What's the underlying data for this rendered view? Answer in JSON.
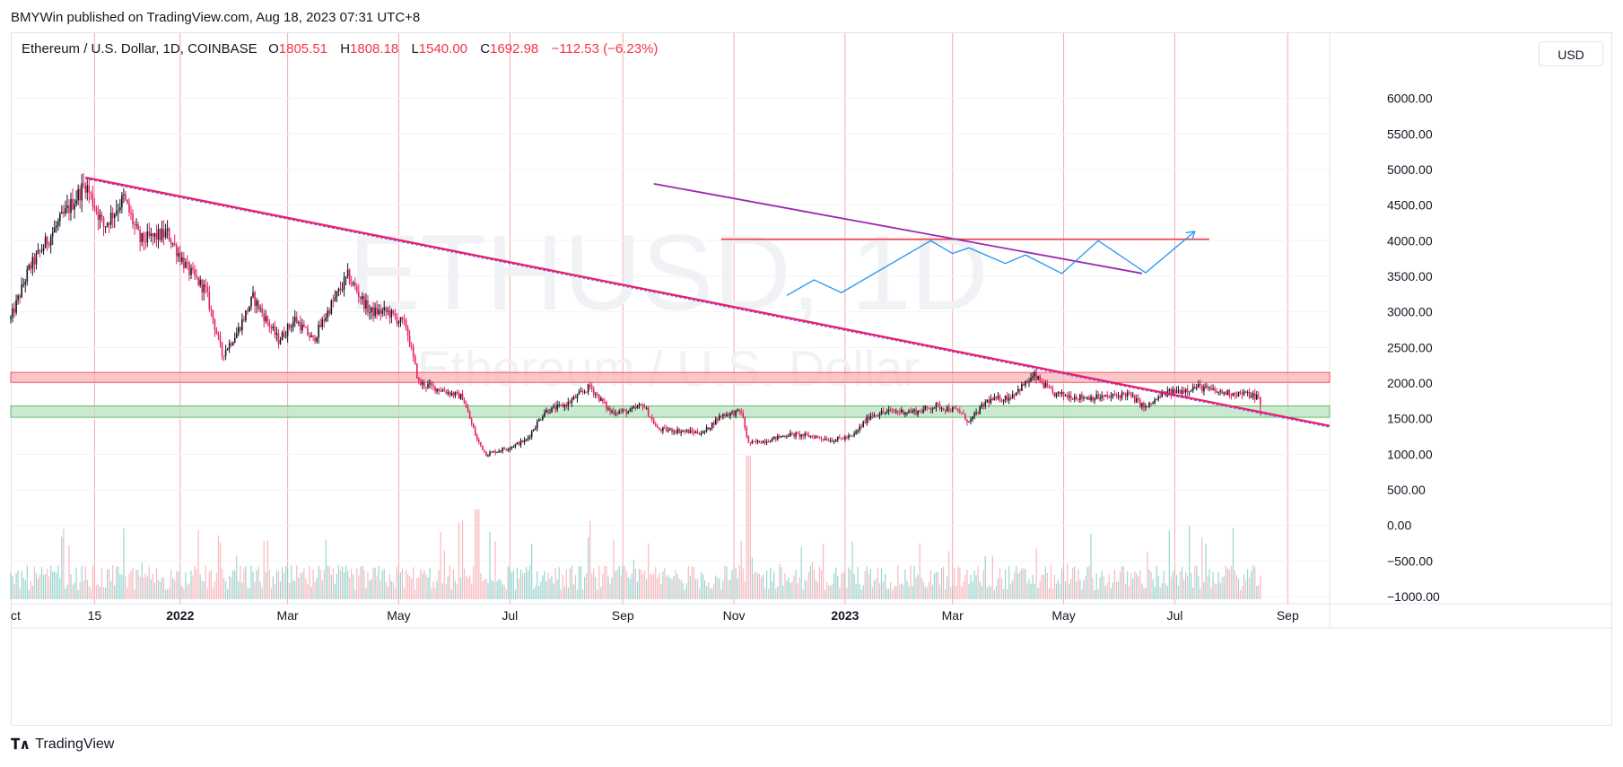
{
  "header": {
    "published": "BMYWin published on TradingView.com, Aug 18, 2023 07:31 UTC+8"
  },
  "legend": {
    "symbol": "Ethereum / U.S. Dollar, 1D, COINBASE",
    "o_label": "O",
    "o_value": "1805.51",
    "h_label": "H",
    "h_value": "1808.18",
    "l_label": "L",
    "l_value": "1540.00",
    "c_label": "C",
    "c_value": "1692.98",
    "change": "−112.53 (−6.23%)"
  },
  "currency_button": "USD",
  "footer": {
    "brand": "TradingView",
    "logo": "tradingview-logo-icon"
  },
  "colors": {
    "up": "#131722",
    "down": "#e91e63",
    "resistance_zone": "#f7b3b8",
    "support_zone": "#b7e3c0",
    "trendline": "#e91e63",
    "purple": "#9c27b0",
    "blue": "#2962ff",
    "red_level": "#f23645"
  },
  "chart_data": {
    "type": "candlestick",
    "watermark": {
      "symbol": "ETHUSD, 1D",
      "name": "Ethereum / U.S. Dollar"
    },
    "y_axis": {
      "ticks": [
        6000,
        5500,
        5000,
        4500,
        4000,
        3500,
        3000,
        2500,
        2000,
        1500,
        1000,
        500,
        0,
        -500,
        -1000
      ],
      "tick_labels": [
        "6000.00",
        "5500.00",
        "5000.00",
        "4500.00",
        "4000.00",
        "3500.00",
        "3000.00",
        "2500.00",
        "2000.00",
        "1500.00",
        "1000.00",
        "500.00",
        "0.00",
        "−500.00",
        "−1000.00"
      ],
      "range": [
        -1100,
        6600
      ]
    },
    "x_axis": {
      "ticks": [
        {
          "label": "ct",
          "date": "2021-10-01",
          "bold": false
        },
        {
          "label": "15",
          "date": "2021-11-15",
          "bold": false
        },
        {
          "label": "2022",
          "date": "2022-01-01",
          "bold": true
        },
        {
          "label": "Mar",
          "date": "2022-03-01",
          "bold": false
        },
        {
          "label": "May",
          "date": "2022-05-01",
          "bold": false
        },
        {
          "label": "Jul",
          "date": "2022-07-01",
          "bold": false
        },
        {
          "label": "Sep",
          "date": "2022-09-01",
          "bold": false
        },
        {
          "label": "Nov",
          "date": "2022-11-01",
          "bold": false
        },
        {
          "label": "2023",
          "date": "2023-01-01",
          "bold": true
        },
        {
          "label": "Mar",
          "date": "2023-03-01",
          "bold": false
        },
        {
          "label": "May",
          "date": "2023-05-01",
          "bold": false
        },
        {
          "label": "Jul",
          "date": "2023-07-01",
          "bold": false
        },
        {
          "label": "Sep",
          "date": "2023-09-01",
          "bold": false
        }
      ],
      "range": [
        "2021-09-30",
        "2023-09-24"
      ]
    },
    "price_path": [
      [
        "2021-09-30",
        2900
      ],
      [
        "2021-10-10",
        3600
      ],
      [
        "2021-10-25",
        4200
      ],
      [
        "2021-11-10",
        4800
      ],
      [
        "2021-11-20",
        4200
      ],
      [
        "2021-12-01",
        4600
      ],
      [
        "2021-12-10",
        4000
      ],
      [
        "2021-12-25",
        4100
      ],
      [
        "2022-01-05",
        3600
      ],
      [
        "2022-01-15",
        3300
      ],
      [
        "2022-01-24",
        2400
      ],
      [
        "2022-02-01",
        2700
      ],
      [
        "2022-02-10",
        3200
      ],
      [
        "2022-02-24",
        2600
      ],
      [
        "2022-03-05",
        2900
      ],
      [
        "2022-03-15",
        2600
      ],
      [
        "2022-03-25",
        3100
      ],
      [
        "2022-04-03",
        3500
      ],
      [
        "2022-04-15",
        3000
      ],
      [
        "2022-04-25",
        3000
      ],
      [
        "2022-05-05",
        2800
      ],
      [
        "2022-05-12",
        2000
      ],
      [
        "2022-05-25",
        1900
      ],
      [
        "2022-06-05",
        1800
      ],
      [
        "2022-06-13",
        1200
      ],
      [
        "2022-06-18",
        1000
      ],
      [
        "2022-07-01",
        1100
      ],
      [
        "2022-07-10",
        1200
      ],
      [
        "2022-07-20",
        1600
      ],
      [
        "2022-08-01",
        1700
      ],
      [
        "2022-08-14",
        1950
      ],
      [
        "2022-08-25",
        1600
      ],
      [
        "2022-09-05",
        1600
      ],
      [
        "2022-09-12",
        1700
      ],
      [
        "2022-09-20",
        1350
      ],
      [
        "2022-10-01",
        1330
      ],
      [
        "2022-10-15",
        1300
      ],
      [
        "2022-10-25",
        1550
      ],
      [
        "2022-11-05",
        1600
      ],
      [
        "2022-11-09",
        1150
      ],
      [
        "2022-11-20",
        1200
      ],
      [
        "2022-12-01",
        1280
      ],
      [
        "2022-12-15",
        1250
      ],
      [
        "2022-12-25",
        1200
      ],
      [
        "2023-01-05",
        1250
      ],
      [
        "2023-01-15",
        1550
      ],
      [
        "2023-01-25",
        1600
      ],
      [
        "2023-02-10",
        1600
      ],
      [
        "2023-02-20",
        1680
      ],
      [
        "2023-03-05",
        1600
      ],
      [
        "2023-03-10",
        1450
      ],
      [
        "2023-03-20",
        1750
      ],
      [
        "2023-04-01",
        1800
      ],
      [
        "2023-04-15",
        2100
      ],
      [
        "2023-04-25",
        1850
      ],
      [
        "2023-05-10",
        1800
      ],
      [
        "2023-05-25",
        1800
      ],
      [
        "2023-06-05",
        1850
      ],
      [
        "2023-06-15",
        1650
      ],
      [
        "2023-06-25",
        1850
      ],
      [
        "2023-07-05",
        1900
      ],
      [
        "2023-07-14",
        1950
      ],
      [
        "2023-07-25",
        1870
      ],
      [
        "2023-08-08",
        1850
      ],
      [
        "2023-08-16",
        1805
      ],
      [
        "2023-08-17",
        1693
      ]
    ],
    "zones": [
      {
        "name": "resistance",
        "from": 2010,
        "to": 2150,
        "color": "#f7b3b8"
      },
      {
        "name": "support",
        "from": 1520,
        "to": 1680,
        "color": "#b7e3c0"
      }
    ],
    "trendline": {
      "start": [
        "2021-11-10",
        4870
      ],
      "end": [
        "2023-09-24",
        1380
      ]
    },
    "purple_line": {
      "start": [
        "2022-09-18",
        4800
      ],
      "end": [
        "2023-06-13",
        3540
      ]
    },
    "red_level": {
      "start": [
        "2022-10-25",
        4020
      ],
      "end": [
        "2023-07-20",
        4020
      ]
    },
    "blue_path": [
      [
        "2022-11-30",
        3230
      ],
      [
        "2022-12-15",
        3450
      ],
      [
        "2022-12-30",
        3270
      ],
      [
        "2023-02-17",
        4000
      ],
      [
        "2023-03-01",
        3820
      ],
      [
        "2023-03-10",
        3900
      ],
      [
        "2023-03-30",
        3680
      ],
      [
        "2023-04-10",
        3800
      ],
      [
        "2023-04-30",
        3540
      ],
      [
        "2023-05-20",
        4000
      ],
      [
        "2023-06-15",
        3550
      ],
      [
        "2023-07-12",
        4130
      ]
    ],
    "volume_band": {
      "base": -1000,
      "scale_note": "volume histogram plotted in lower pane"
    }
  }
}
